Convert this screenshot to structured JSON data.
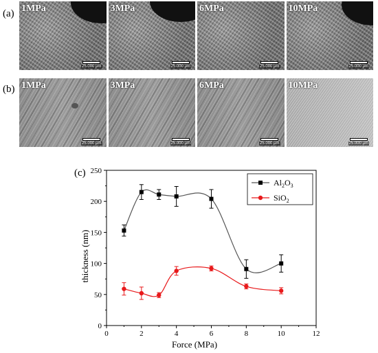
{
  "panels": {
    "a_label": "(a)",
    "b_label": "(b)",
    "c_label": "(c)",
    "a_images": [
      {
        "label": "1MPa",
        "scale": "25.000 μm"
      },
      {
        "label": "3MPa",
        "scale": "25.000 μm"
      },
      {
        "label": "6MPa",
        "scale": "25.000 μm"
      },
      {
        "label": "10MPa",
        "scale": "25.000 μm"
      }
    ],
    "b_images": [
      {
        "label": "1MPa",
        "scale": "25.000 μm"
      },
      {
        "label": "3MPa",
        "scale": "25.000 μm"
      },
      {
        "label": "6MPa",
        "scale": "25.000 μm"
      },
      {
        "label": "10MPa",
        "scale": "25.000 μm"
      }
    ]
  },
  "chart_data": {
    "type": "line",
    "title": "",
    "xlabel": "Force (MPa)",
    "ylabel": "thickness (nm)",
    "xlim": [
      0,
      12
    ],
    "ylim": [
      0,
      250
    ],
    "xticks": [
      0,
      2,
      4,
      6,
      8,
      10,
      12
    ],
    "yticks": [
      0,
      50,
      100,
      150,
      200,
      250
    ],
    "grid": false,
    "legend_position": "top-right",
    "series": [
      {
        "name": "Al2O3",
        "name_main": "Al",
        "name_sub1": "2",
        "name_mid": "O",
        "name_sub2": "3",
        "color": "#000000",
        "marker": "square",
        "x": [
          1,
          2,
          3,
          4,
          6,
          8,
          10
        ],
        "y": [
          153,
          215,
          211,
          208,
          204,
          91,
          100
        ],
        "error": [
          9,
          12,
          8,
          16,
          15,
          15,
          14
        ],
        "fit_color": "#555555"
      },
      {
        "name": "SiO2",
        "name_main": "SiO",
        "name_sub1": "2",
        "color": "#e8191b",
        "marker": "circle",
        "x": [
          1,
          2,
          3,
          4,
          6,
          8,
          10
        ],
        "y": [
          59,
          52,
          49,
          88,
          92,
          63,
          56
        ],
        "error": [
          10,
          10,
          4,
          7,
          4,
          4,
          5
        ],
        "fit_color": "#e8191b"
      }
    ]
  }
}
